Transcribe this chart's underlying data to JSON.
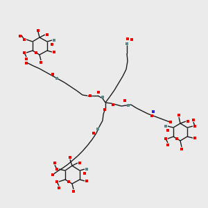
{
  "bg_color": "#ebebeb",
  "line_color": "#1a1a1a",
  "red_color": "#ee0000",
  "blue_color": "#2020dd",
  "teal_color": "#5a8888",
  "figsize": [
    3.0,
    3.0
  ],
  "dpi": 100,
  "sq_r": 4.5,
  "sq_n": 4.2,
  "sq_o": 4.5,
  "lw": 1.0
}
